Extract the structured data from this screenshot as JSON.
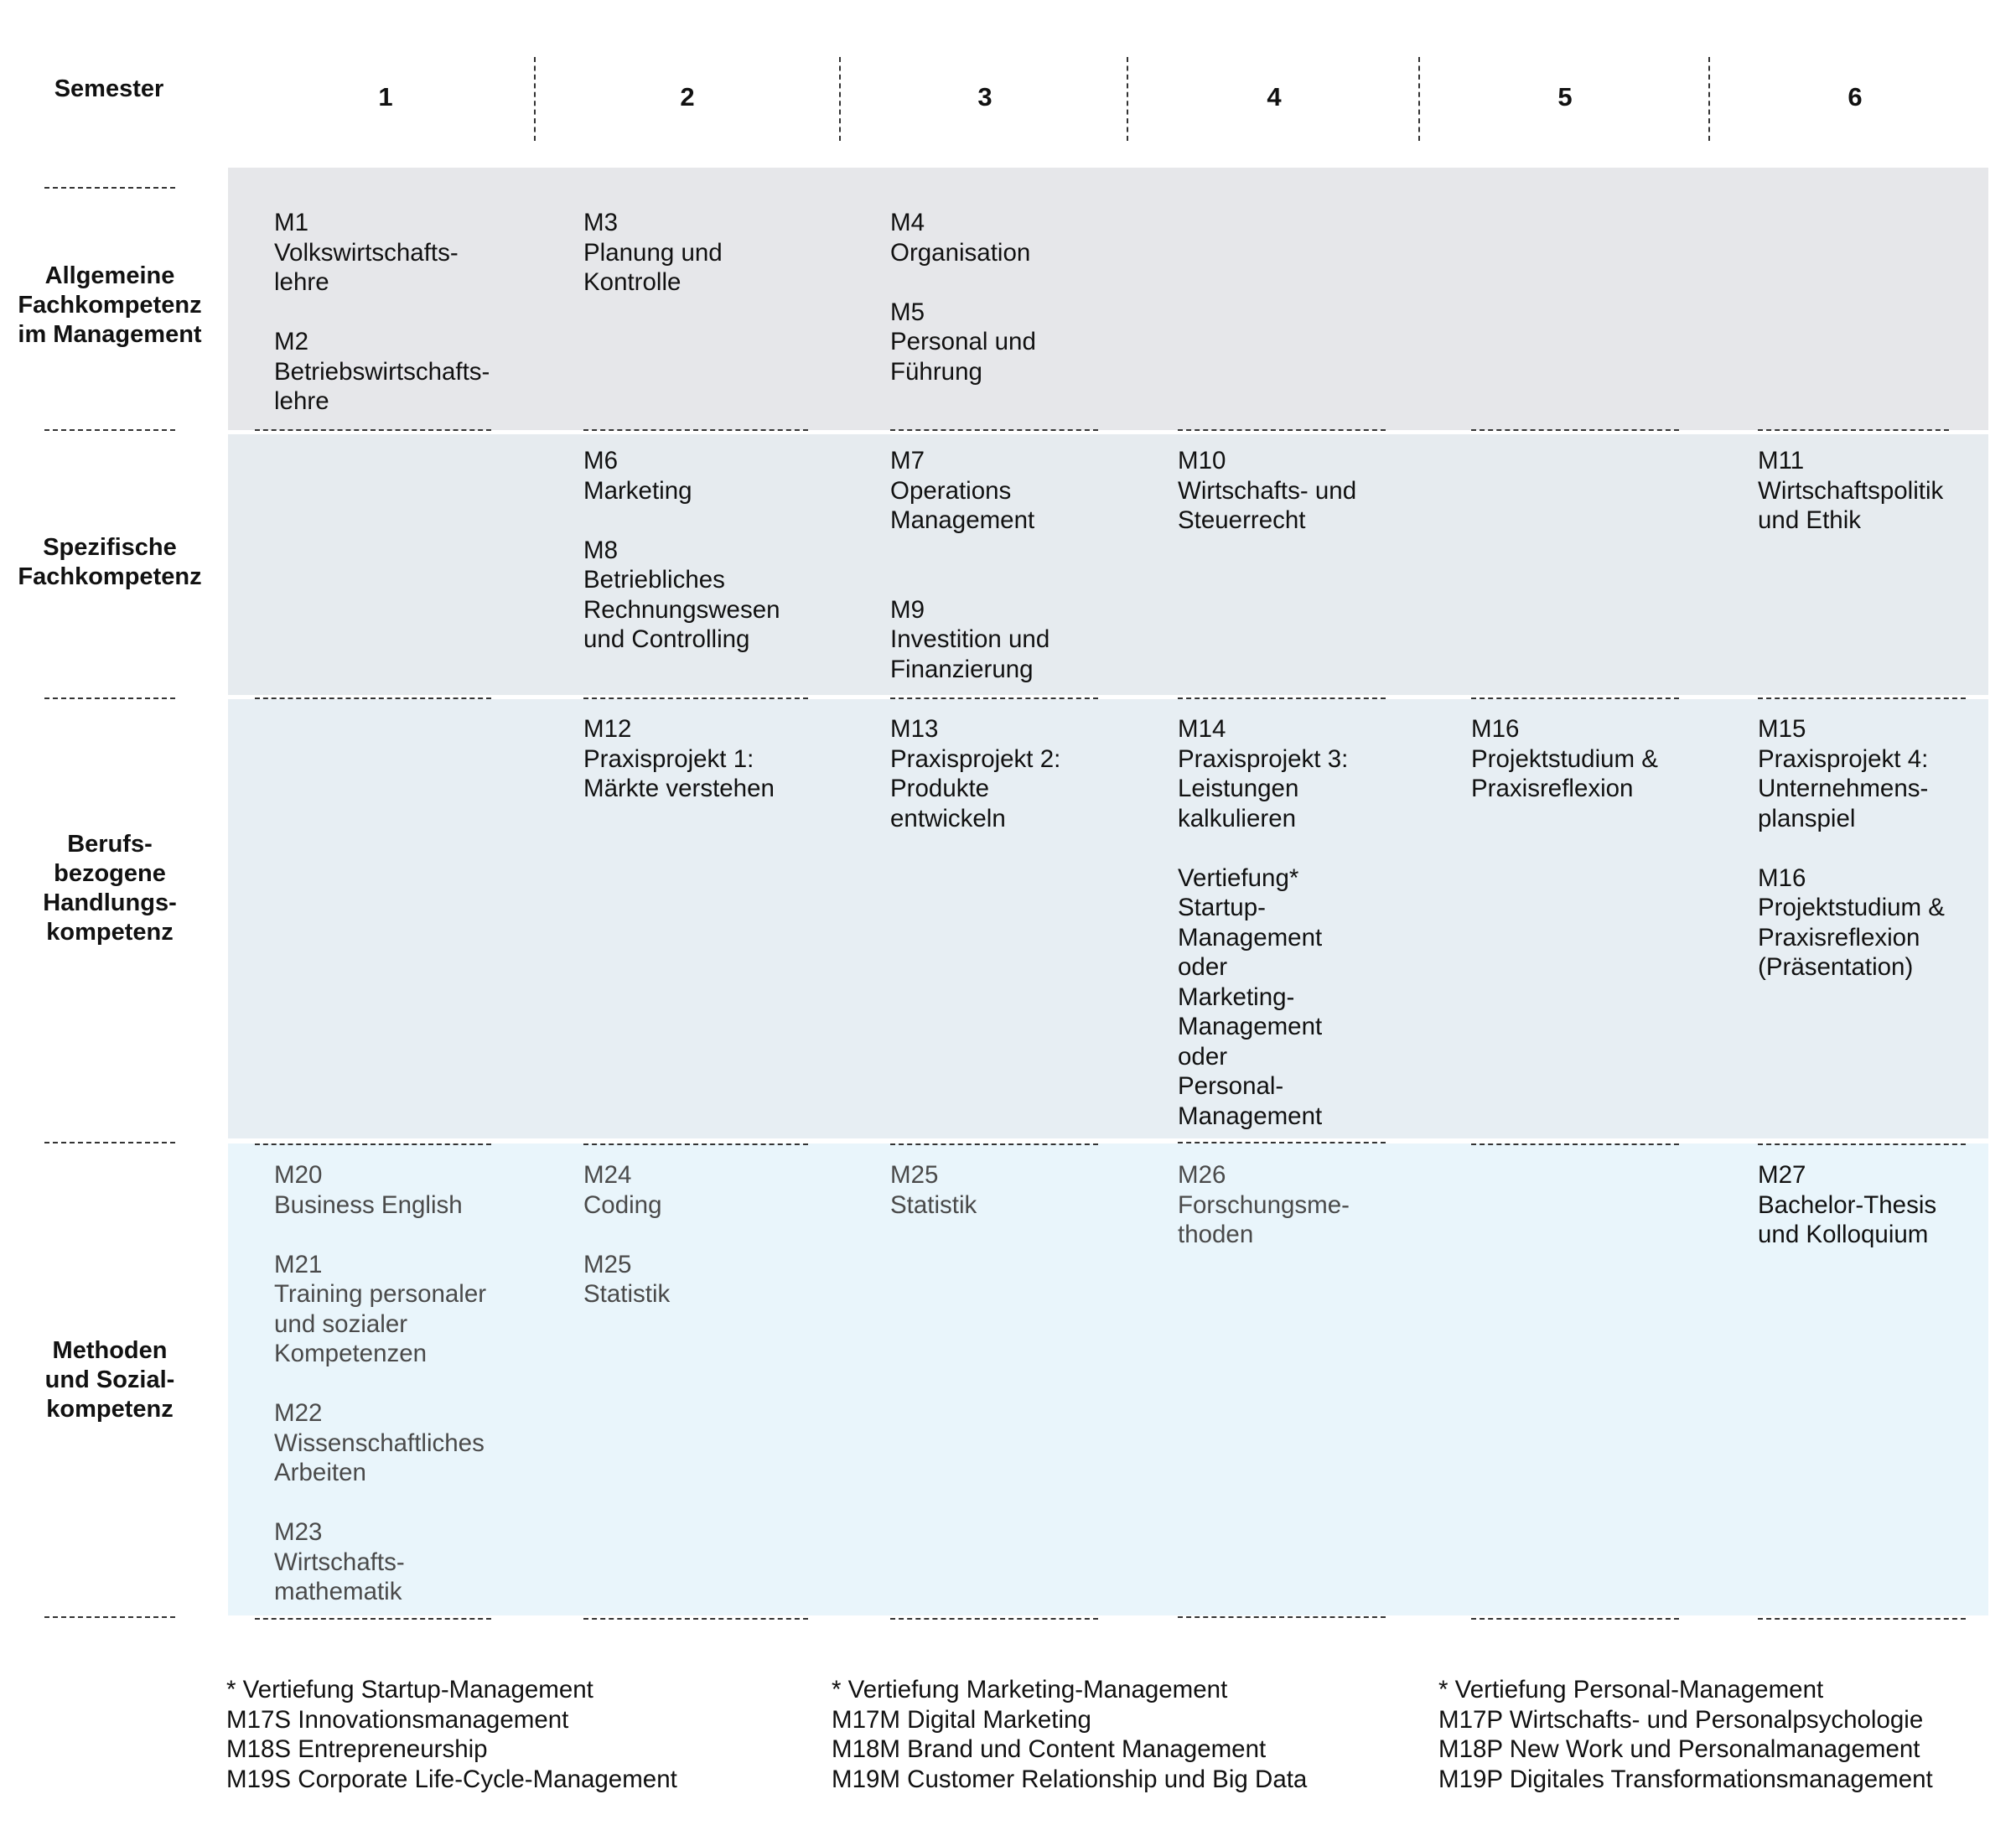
{
  "header": {
    "semester_label": "Semester",
    "semesters": [
      "1",
      "2",
      "3",
      "4",
      "5",
      "6"
    ]
  },
  "rows": [
    {
      "label": "Allgemeine\nFachkompetenz\nim Management"
    },
    {
      "label": "Spezifische\nFachkompetenz"
    },
    {
      "label": "Berufs-\nbezogene\nHandlungs-\nkompetenz"
    },
    {
      "label": "Methoden\nund Sozial-\nkompetenz"
    }
  ],
  "cells": {
    "r1_s1": "M1\nVolkswirtschafts-\nlehre\n\nM2\nBetriebswirtschafts-\nlehre",
    "r1_s2": "M3\nPlanung und\nKontrolle",
    "r1_s3": "M4\nOrganisation\n\nM5\nPersonal und\nFührung",
    "r2_s2": "M6\nMarketing\n\nM8\nBetriebliches\nRechnungswesen\nund Controlling",
    "r2_s3": "M7\nOperations\nManagement\n\n\nM9\nInvestition und\nFinanzierung",
    "r2_s4": "M10\nWirtschafts- und\nSteuerrecht",
    "r2_s6": "M11\nWirtschaftspolitik\nund Ethik",
    "r3_s2": "M12\nPraxisprojekt 1:\nMärkte verstehen",
    "r3_s3": "M13\nPraxisprojekt 2:\nProdukte\nentwickeln",
    "r3_s4": "M14\nPraxisprojekt 3:\nLeistungen\nkalkulieren\n\nVertiefung*\nStartup-\nManagement\noder\nMarketing-\nManagement\noder\nPersonal-\nManagement",
    "r3_s5": "M16\nProjektstudium &\nPraxisreflexion",
    "r3_s6": "M15\nPraxisprojekt 4:\nUnternehmens-\nplanspiel\n\nM16\nProjektstudium &\nPraxisreflexion\n(Präsentation)",
    "r4_s1": "M20\nBusiness English\n\nM21\nTraining personaler\nund sozialer\nKompetenzen\n\nM22\nWissenschaftliches\nArbeiten\n\nM23\nWirtschafts-\nmathematik",
    "r4_s2": "M24\nCoding\n\nM25\nStatistik",
    "r4_s3": "M25\nStatistik",
    "r4_s4": "M26\nForschungsme-\nthoden",
    "r4_s6": "M27\nBachelor-Thesis\nund Kolloquium"
  },
  "footnotes": [
    "* Vertiefung Startup-Management\nM17S Innovationsmanagement\nM18S Entrepreneurship\nM19S Corporate Life-Cycle-Management",
    "* Vertiefung Marketing-Management\nM17M Digital Marketing\nM18M Brand und Content Management\nM19M Customer Relationship und Big Data",
    "* Vertiefung Personal-Management\nM17P Wirtschafts- und Personalpsychologie\nM18P New Work und Personalmanagement\nM19P Digitales Transformationsmanagement"
  ]
}
